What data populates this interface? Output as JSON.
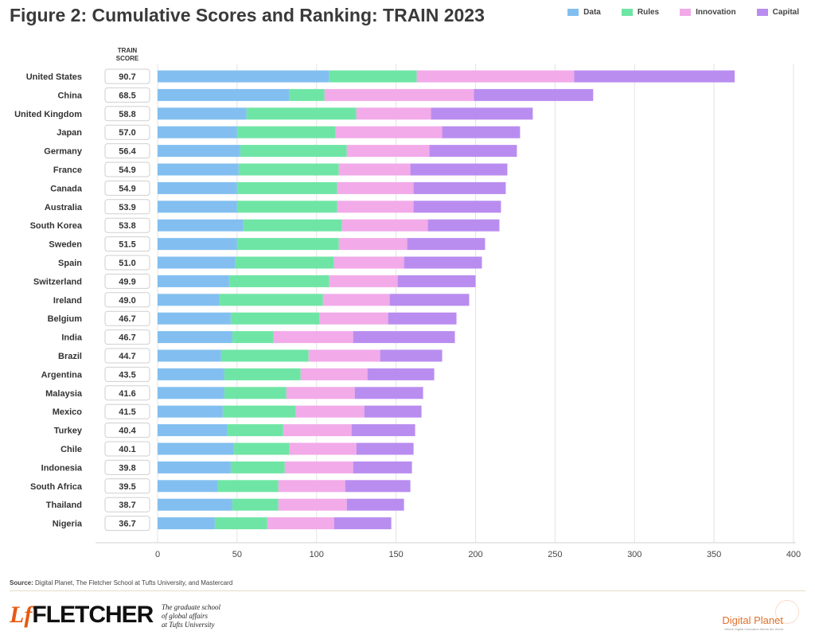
{
  "title": "Figure 2: Cumulative Scores and Ranking: TRAIN 2023",
  "legend": [
    {
      "label": "Data",
      "color": "#82bff0"
    },
    {
      "label": "Rules",
      "color": "#6fe5a5"
    },
    {
      "label": "Innovation",
      "color": "#f2aae9"
    },
    {
      "label": "Capital",
      "color": "#b98df0"
    }
  ],
  "score_header": [
    "TRAIN",
    "SCORE"
  ],
  "source_label": "Source:",
  "source_text": " Digital Planet, The Fletcher School at Tufts University, and Mastercard",
  "footer": {
    "fletcher_mark": "Lf",
    "fletcher_word": "FLETCHER",
    "tagline": [
      "The graduate school",
      "of global affairs",
      "at Tufts University"
    ],
    "brand": "Digital Planet",
    "brand_sub": "Where Digital Innovation Meets the World"
  },
  "chart_data": {
    "type": "bar",
    "orientation": "horizontal",
    "stacked": true,
    "title": "Figure 2: Cumulative Scores and Ranking: TRAIN 2023",
    "xlim": [
      0,
      400
    ],
    "xticks": [
      0,
      50,
      100,
      150,
      200,
      250,
      300,
      350,
      400
    ],
    "grid": true,
    "legend_position": "top-right",
    "categories": [
      "United States",
      "China",
      "United Kingdom",
      "Japan",
      "Germany",
      "France",
      "Canada",
      "Australia",
      "South Korea",
      "Sweden",
      "Spain",
      "Switzerland",
      "Ireland",
      "Belgium",
      "India",
      "Brazil",
      "Argentina",
      "Malaysia",
      "Mexico",
      "Turkey",
      "Chile",
      "Indonesia",
      "South Africa",
      "Thailand",
      "Nigeria"
    ],
    "train_scores": [
      "90.7",
      "68.5",
      "58.8",
      "57.0",
      "56.4",
      "54.9",
      "54.9",
      "53.9",
      "53.8",
      "51.5",
      "51.0",
      "49.9",
      "49.0",
      "46.7",
      "46.7",
      "44.7",
      "43.5",
      "41.6",
      "41.5",
      "40.4",
      "40.1",
      "39.8",
      "39.5",
      "38.7",
      "36.7"
    ],
    "series": [
      {
        "name": "Data",
        "values": [
          108,
          83,
          56,
          50,
          52,
          51,
          50,
          50,
          54,
          50,
          49,
          45,
          39,
          46,
          47,
          40,
          42,
          42,
          41,
          44,
          48,
          46,
          38,
          47,
          36
        ]
      },
      {
        "name": "Rules",
        "values": [
          55,
          22,
          69,
          62,
          67,
          63,
          63,
          63,
          62,
          64,
          62,
          63,
          65,
          56,
          26,
          55,
          48,
          39,
          46,
          35,
          35,
          34,
          38,
          29,
          33
        ]
      },
      {
        "name": "Innovation",
        "values": [
          99,
          94,
          47,
          67,
          52,
          45,
          48,
          48,
          54,
          43,
          44,
          43,
          42,
          43,
          50,
          45,
          42,
          43,
          43,
          43,
          42,
          43,
          42,
          43,
          42
        ]
      },
      {
        "name": "Capital",
        "values": [
          101,
          75,
          64,
          49,
          55,
          61,
          58,
          55,
          45,
          49,
          49,
          49,
          50,
          43,
          64,
          39,
          42,
          43,
          36,
          40,
          36,
          37,
          41,
          36,
          36
        ]
      }
    ]
  }
}
